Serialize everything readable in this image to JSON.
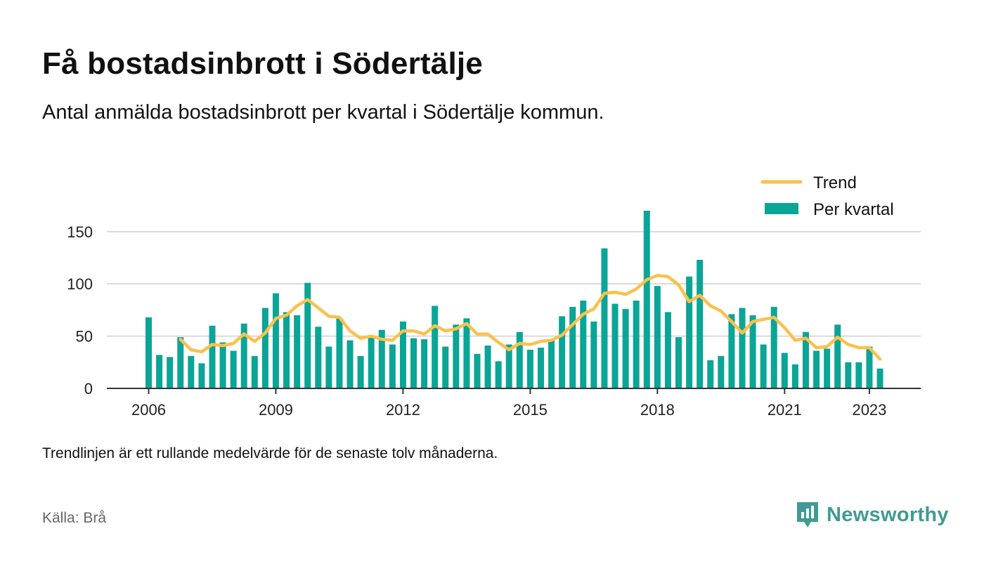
{
  "header": {
    "title": "Få bostadsinbrott i Södertälje",
    "subtitle": "Antal anmälda bostadsinbrott per kvartal i Södertälje kommun."
  },
  "footer": {
    "note": "Trendlinjen är ett rullande medelvärde för de senaste tolv månaderna.",
    "source": "Källa: Brå",
    "brand": "Newsworthy"
  },
  "colors": {
    "bar": "#0aa596",
    "trend": "#f9c14d",
    "grid": "#d9d9d9",
    "axis": "#333333",
    "brand": "#3f9b93"
  },
  "chart_data": {
    "type": "bar",
    "x_start": "2006-Q1",
    "x_ticks": [
      "2006",
      "2009",
      "2012",
      "2015",
      "2018",
      "2021",
      "2023"
    ],
    "y_ticks": [
      0,
      50,
      100,
      150
    ],
    "ylim": [
      0,
      170
    ],
    "grid": true,
    "legend_position": "top-right",
    "series": [
      {
        "name": "Per kvartal",
        "kind": "bar",
        "values": [
          68,
          32,
          30,
          49,
          31,
          24,
          60,
          44,
          36,
          62,
          31,
          77,
          91,
          73,
          70,
          101,
          59,
          40,
          67,
          46,
          31,
          49,
          56,
          42,
          64,
          48,
          47,
          79,
          40,
          61,
          67,
          33,
          41,
          26,
          42,
          54,
          37,
          39,
          47,
          69,
          78,
          84,
          64,
          134,
          81,
          76,
          84,
          170,
          98,
          73,
          49,
          107,
          123,
          27,
          31,
          71,
          77,
          70,
          42,
          78,
          34,
          23,
          54,
          36,
          38,
          61,
          25,
          25,
          40,
          19
        ]
      },
      {
        "name": "Trend",
        "kind": "line",
        "start_index": 3,
        "values": [
          47,
          37,
          35,
          42,
          41,
          43,
          52,
          45,
          53,
          67,
          70,
          79,
          85,
          77,
          69,
          68,
          55,
          48,
          50,
          47,
          46,
          55,
          55,
          52,
          60,
          55,
          57,
          62,
          52,
          52,
          44,
          37,
          43,
          42,
          45,
          46,
          51,
          61,
          71,
          76,
          91,
          92,
          90,
          95,
          104,
          108,
          107,
          99,
          83,
          89,
          79,
          74,
          64,
          53,
          64,
          66,
          68,
          58,
          46,
          48,
          39,
          40,
          49,
          42,
          39,
          39,
          28
        ]
      }
    ]
  }
}
